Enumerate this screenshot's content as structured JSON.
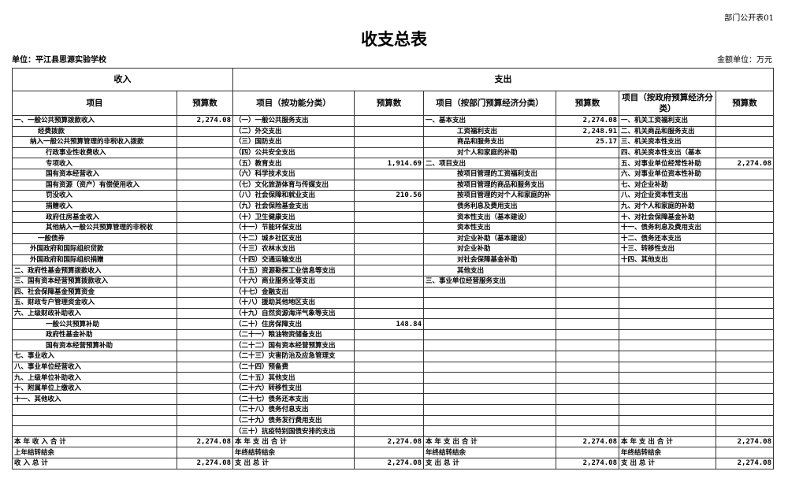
{
  "header": {
    "form_no": "部门公开表01",
    "title": "收支总表",
    "unit": "单位：平江县思源实验学校",
    "money_unit": "金额单位：万元"
  },
  "columns": {
    "income": "收入",
    "expense": "支出",
    "item": "项目",
    "budget": "预算数",
    "func_item": "项目（按功能分类）",
    "dept_econ_item": "项目（按部门预算经济分类）",
    "gov_econ_item": "项目（按政府预算经济分类）"
  },
  "income": [
    {
      "label": "一、一般公共预算拨款收入",
      "level": 0,
      "value": "2,274.08"
    },
    {
      "label": "经费拨款",
      "level": 2,
      "value": ""
    },
    {
      "label": "纳入一般公共预算管理的非税收入拨款",
      "level": 1,
      "value": ""
    },
    {
      "label": "行政事业性收费收入",
      "level": 3,
      "value": ""
    },
    {
      "label": "专项收入",
      "level": 3,
      "value": ""
    },
    {
      "label": "国有资本经营收入",
      "level": 3,
      "value": ""
    },
    {
      "label": "国有资源（资产）有偿使用收入",
      "level": 3,
      "value": ""
    },
    {
      "label": "罚没收入",
      "level": 3,
      "value": ""
    },
    {
      "label": "捐赠收入",
      "level": 3,
      "value": ""
    },
    {
      "label": "政府住房基金收入",
      "level": 3,
      "value": ""
    },
    {
      "label": "其他纳入一般公共预算管理的非税收",
      "level": 3,
      "value": ""
    },
    {
      "label": "一般债券",
      "level": 2,
      "value": ""
    },
    {
      "label": "外国政府和国际组织贷款",
      "level": 1,
      "value": ""
    },
    {
      "label": "外国政府和国际组织捐赠",
      "level": 1,
      "value": ""
    },
    {
      "label": "二、政府性基金预算拨款收入",
      "level": 0,
      "value": ""
    },
    {
      "label": "三、国有资本经营预算拨款收入",
      "level": 0,
      "value": ""
    },
    {
      "label": "四、社会保障基金预算资金",
      "level": 0,
      "value": ""
    },
    {
      "label": "五、财政专户管理资金收入",
      "level": 0,
      "value": ""
    },
    {
      "label": "六、上级财政补助收入",
      "level": 0,
      "value": ""
    },
    {
      "label": "一般公共预算补助",
      "level": 3,
      "value": ""
    },
    {
      "label": "政府性基金补助",
      "level": 3,
      "value": ""
    },
    {
      "label": "国有资本经营预算补助",
      "level": 3,
      "value": ""
    },
    {
      "label": "七、事业收入",
      "level": 0,
      "value": ""
    },
    {
      "label": "八、事业单位经营收入",
      "level": 0,
      "value": ""
    },
    {
      "label": "九、上级单位补助收入",
      "level": 0,
      "value": ""
    },
    {
      "label": "十、附属单位上缴收入",
      "level": 0,
      "value": ""
    },
    {
      "label": "十一、其他收入",
      "level": 0,
      "value": ""
    },
    {
      "label": "",
      "level": 0,
      "value": ""
    },
    {
      "label": "",
      "level": 0,
      "value": ""
    },
    {
      "label": "",
      "level": 0,
      "value": ""
    }
  ],
  "func": [
    {
      "label": "（一）一般公共服务支出",
      "value": ""
    },
    {
      "label": "（二）外交支出",
      "value": ""
    },
    {
      "label": "（三）国防支出",
      "value": ""
    },
    {
      "label": "（四）公共安全支出",
      "value": ""
    },
    {
      "label": "（五）教育支出",
      "value": "1,914.69"
    },
    {
      "label": "（六）科学技术支出",
      "value": ""
    },
    {
      "label": "（七）文化旅游体育与传媒支出",
      "value": ""
    },
    {
      "label": "（八）社会保障和就业支出",
      "value": "210.56"
    },
    {
      "label": "（九）社会保险基金支出",
      "value": ""
    },
    {
      "label": "（十）卫生健康支出",
      "value": ""
    },
    {
      "label": "（十一）节能环保支出",
      "value": ""
    },
    {
      "label": "（十二）城乡社区支出",
      "value": ""
    },
    {
      "label": "（十三）农林水支出",
      "value": ""
    },
    {
      "label": "（十四）交通运输支出",
      "value": ""
    },
    {
      "label": "（十五）资源勘探工业信息等支出",
      "value": ""
    },
    {
      "label": "（十六）商业服务业等支出",
      "value": ""
    },
    {
      "label": "（十七）金融支出",
      "value": ""
    },
    {
      "label": "（十八）援助其他地区支出",
      "value": ""
    },
    {
      "label": "（十九）自然资源海洋气象等支出",
      "value": ""
    },
    {
      "label": "（二十）住房保障支出",
      "value": "148.84"
    },
    {
      "label": "（二十一）粮油物资储备支出",
      "value": ""
    },
    {
      "label": "（二十二）国有资本经营预算支出",
      "value": ""
    },
    {
      "label": "（二十三）灾害防治及应急管理支",
      "value": ""
    },
    {
      "label": "（二十四）预备费",
      "value": ""
    },
    {
      "label": "（二十五）其他支出",
      "value": ""
    },
    {
      "label": "（二十六）转移性支出",
      "value": ""
    },
    {
      "label": "（二十七）债务还本支出",
      "value": ""
    },
    {
      "label": "（二十八）债务付息支出",
      "value": ""
    },
    {
      "label": "（二十九）债务发行费用支出",
      "value": ""
    },
    {
      "label": "（三十）抗疫特别国债安排的支出",
      "value": ""
    }
  ],
  "dept_econ": [
    {
      "label": "一、基本支出",
      "level": 0,
      "value": "2,274.08"
    },
    {
      "label": "工资福利支出",
      "level": 3,
      "value": "2,248.91"
    },
    {
      "label": "商品和服务支出",
      "level": 3,
      "value": "25.17"
    },
    {
      "label": "对个人和家庭的补助",
      "level": 3,
      "value": ""
    },
    {
      "label": "二、项目支出",
      "level": 0,
      "value": ""
    },
    {
      "label": "按项目管理的工资福利支出",
      "level": 3,
      "value": ""
    },
    {
      "label": "按项目管理的商品和服务支出",
      "level": 3,
      "value": ""
    },
    {
      "label": "按项目管理的对个人和家庭的补",
      "level": 3,
      "value": ""
    },
    {
      "label": "债务利息及费用支出",
      "level": 3,
      "value": ""
    },
    {
      "label": "资本性支出（基本建设）",
      "level": 3,
      "value": ""
    },
    {
      "label": "资本性支出",
      "level": 3,
      "value": ""
    },
    {
      "label": "对企业补助（基本建设）",
      "level": 3,
      "value": ""
    },
    {
      "label": "对企业补助",
      "level": 3,
      "value": ""
    },
    {
      "label": "对社会保障基金补助",
      "level": 3,
      "value": ""
    },
    {
      "label": "其他支出",
      "level": 3,
      "value": ""
    },
    {
      "label": "三、事业单位经营服务支出",
      "level": 0,
      "value": ""
    }
  ],
  "gov_econ": [
    {
      "label": "一、机关工资福利支出",
      "value": ""
    },
    {
      "label": "二、机关商品和服务支出",
      "value": ""
    },
    {
      "label": "三、机关资本性支出",
      "value": ""
    },
    {
      "label": "四、机关资本性支出（基本",
      "value": ""
    },
    {
      "label": "五、对事业单位经常性补助",
      "value": "2,274.08"
    },
    {
      "label": "六、对事业单位资本性补助",
      "value": ""
    },
    {
      "label": "七、对企业补助",
      "value": ""
    },
    {
      "label": "八、对企业资本性支出",
      "value": ""
    },
    {
      "label": "九、对个人和家庭的补助",
      "value": ""
    },
    {
      "label": "十、对社会保障基金补助",
      "value": ""
    },
    {
      "label": "十一、债务利息及费用支出",
      "value": ""
    },
    {
      "label": "十二、债务还本支出",
      "value": ""
    },
    {
      "label": "十三、转移性支出",
      "value": ""
    },
    {
      "label": "十四、其他支出",
      "value": ""
    }
  ],
  "totals": [
    {
      "income_label": "本 年 收 入 合 计",
      "income_value": "2,274.08",
      "func_label": "本 年 支 出 合 计",
      "func_value": "2,274.08",
      "dept_label": "本 年 支 出 合 计",
      "dept_value": "2,274.08",
      "gov_label": "本 年 支 出 合 计",
      "gov_value": "2,274.08"
    },
    {
      "income_label": "上年结转结余",
      "income_value": "",
      "func_label": "年终结转结余",
      "func_value": "",
      "dept_label": "年终结转结余",
      "dept_value": "",
      "gov_label": "年终结转结余",
      "gov_value": ""
    },
    {
      "income_label": "收 入 总 计",
      "income_value": "2,274.08",
      "func_label": "支 出 总 计",
      "func_value": "2,274.08",
      "dept_label": "支 出 总 计",
      "dept_value": "2,274.08",
      "gov_label": "支 出 总 计",
      "gov_value": "2,274.08"
    }
  ]
}
